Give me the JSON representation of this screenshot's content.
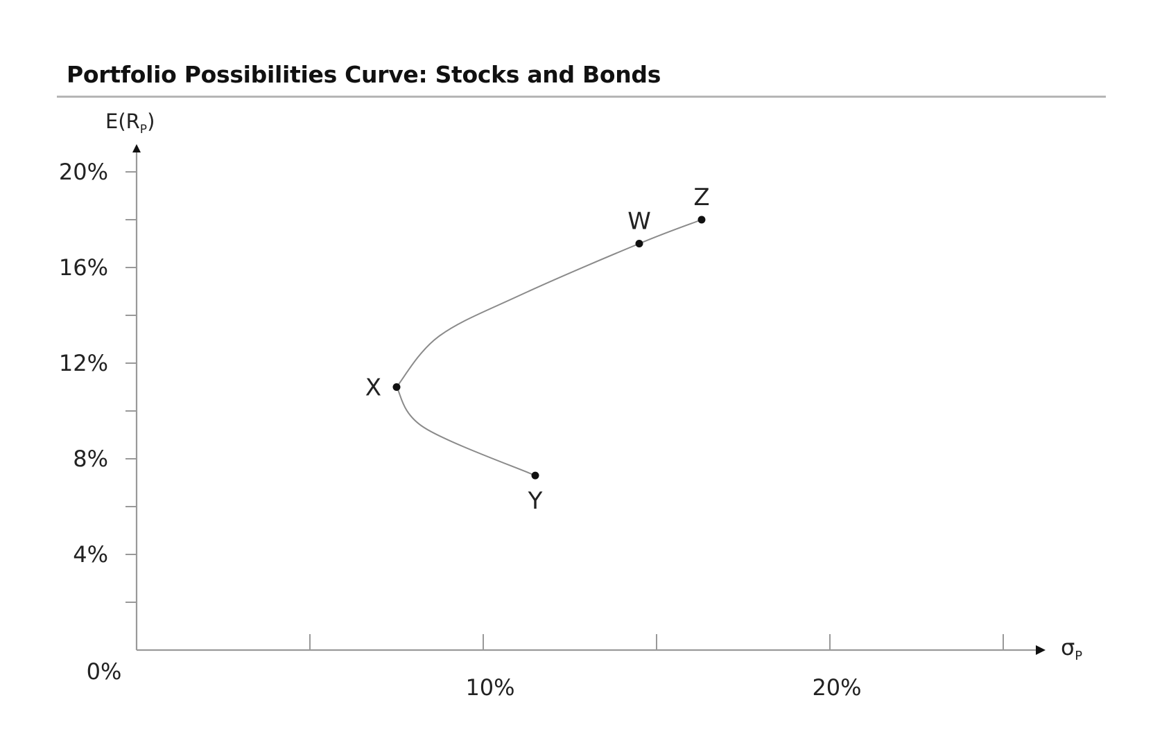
{
  "chart_data": {
    "type": "line",
    "title": "Portfolio Possibilities Curve: Stocks and Bonds",
    "ylabel": "E(R",
    "ylabel_subscript": "P",
    "ylabel_close": ")",
    "xlabel": "σ",
    "xlabel_subscript": "P",
    "origin_label": "0%",
    "xlim": [
      0,
      26
    ],
    "ylim": [
      0,
      21
    ],
    "x_ticks": [
      5,
      10,
      15,
      20,
      25
    ],
    "x_tick_labels": [
      {
        "value": 10,
        "label": "10%"
      },
      {
        "value": 20,
        "label": "20%"
      }
    ],
    "y_ticks": [
      2,
      4,
      6,
      8,
      10,
      12,
      14,
      16,
      18,
      20
    ],
    "y_tick_labels": [
      {
        "value": 4,
        "label": "4%"
      },
      {
        "value": 8,
        "label": "8%"
      },
      {
        "value": 12,
        "label": "12%"
      },
      {
        "value": 16,
        "label": "16%"
      },
      {
        "value": 20,
        "label": "20%"
      }
    ],
    "grid": false,
    "curve": [
      {
        "x": 7.5,
        "y": 11.0
      },
      {
        "x": 8.7,
        "y": 13.1
      },
      {
        "x": 11.0,
        "y": 14.8
      },
      {
        "x": 14.5,
        "y": 17.0
      },
      {
        "x": 16.3,
        "y": 18.0
      }
    ],
    "curve_lower": [
      {
        "x": 7.5,
        "y": 11.0
      },
      {
        "x": 8.3,
        "y": 9.3
      },
      {
        "x": 11.5,
        "y": 7.3
      }
    ],
    "points": [
      {
        "label": "X",
        "x": 7.5,
        "y": 11.0,
        "label_pos": "left"
      },
      {
        "label": "Y",
        "x": 11.5,
        "y": 7.3,
        "label_pos": "below"
      },
      {
        "label": "W",
        "x": 14.5,
        "y": 17.0,
        "label_pos": "above"
      },
      {
        "label": "Z",
        "x": 16.3,
        "y": 18.0,
        "label_pos": "above"
      }
    ]
  }
}
